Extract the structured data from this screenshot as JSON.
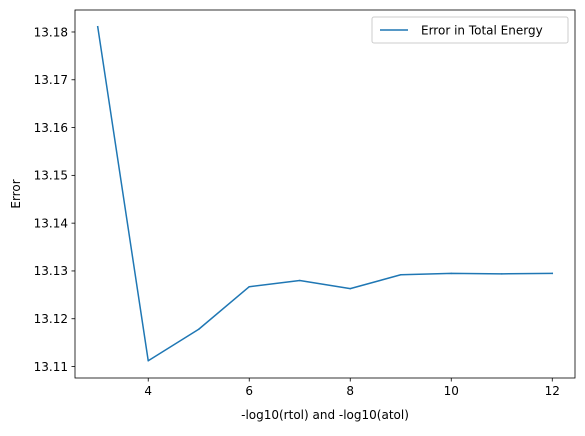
{
  "chart_data": {
    "type": "line",
    "title": "",
    "xlabel": "-log10(rtol) and -log10(atol)",
    "ylabel": "Error",
    "xlim": [
      2.55,
      12.45
    ],
    "ylim": [
      13.1076,
      13.1846
    ],
    "xticks": [
      4,
      6,
      8,
      10,
      12
    ],
    "xtick_labels": [
      "4",
      "6",
      "8",
      "10",
      "12"
    ],
    "yticks": [
      13.11,
      13.12,
      13.13,
      13.14,
      13.15,
      13.16,
      13.17,
      13.18
    ],
    "ytick_labels": [
      "13.11",
      "13.12",
      "13.13",
      "13.14",
      "13.15",
      "13.16",
      "13.17",
      "13.18"
    ],
    "grid": false,
    "legend_position": "top-right",
    "series": [
      {
        "name": "Error in Total Energy",
        "color": "#1f77b4",
        "x": [
          3,
          4,
          5,
          6,
          7,
          8,
          9,
          10,
          11,
          12
        ],
        "y": [
          13.1811,
          13.1112,
          13.1178,
          13.1267,
          13.128,
          13.1263,
          13.1292,
          13.1295,
          13.1294,
          13.1295
        ]
      }
    ]
  }
}
